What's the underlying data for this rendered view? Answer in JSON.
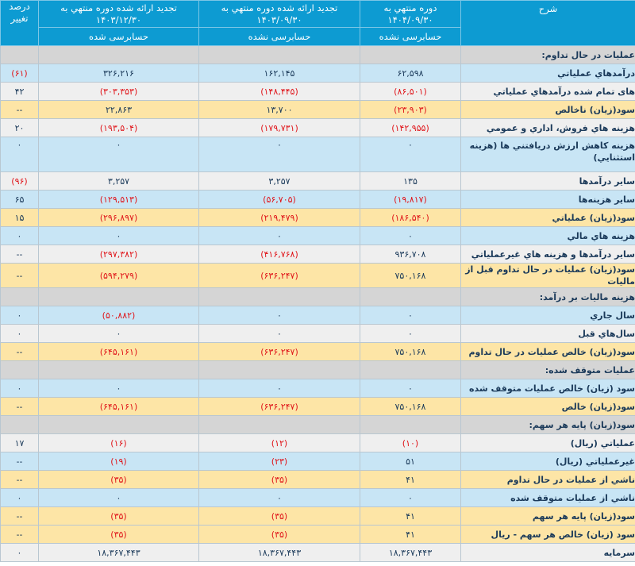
{
  "header": {
    "desc": "شرح",
    "col1": "دوره منتهي به ۱۴۰۴/۰۹/۳۰",
    "col2": "تجديد ارائه شده دوره منتهي به ۱۴۰۳/۰۹/۳۰",
    "col3": "تجديد ارائه شده دوره منتهي به ۱۴۰۳/۱۲/۳۰",
    "pct": "درصد تغيير",
    "col1_status": "حسابرسی نشده",
    "col2_status": "حسابرسی نشده",
    "col3_status": "حسابرسی شده"
  },
  "colors": {
    "header": "#0d9bd2",
    "negative": "#e0161b",
    "blue_row": "#c8e5f5",
    "yellow_row": "#fde5a6",
    "section_row": "#d5d5d5"
  },
  "rows": [
    {
      "type": "sec",
      "desc": "عمليات در حال تداوم:"
    },
    {
      "type": "blue",
      "desc": "درآمدهاي عملياتي",
      "c1": "۶۲,۵۹۸",
      "c2": "۱۶۲,۱۴۵",
      "c3": "۳۲۶,۲۱۶",
      "pct": "(۶۱)"
    },
    {
      "type": "gray",
      "desc": "هاى تمام شده درآمدهاي عملياتي",
      "c1": "(۸۶,۵۰۱)",
      "c2": "(۱۴۸,۴۴۵)",
      "c3": "(۳۰۳,۳۵۳)",
      "pct": "۴۲"
    },
    {
      "type": "yellow",
      "desc": "سود(زيان) ناخالص",
      "c1": "(۲۳,۹۰۳)",
      "c2": "۱۳,۷۰۰",
      "c3": "۲۲,۸۶۳",
      "pct": "--"
    },
    {
      "type": "gray",
      "desc": "هزينه هاي فروش، اداري و عمومي",
      "c1": "(۱۴۲,۹۵۵)",
      "c2": "(۱۷۹,۷۳۱)",
      "c3": "(۱۹۳,۵۰۴)",
      "pct": "۲۰"
    },
    {
      "type": "blue tall",
      "desc": "هزينه كاهش ارزش دريافتني ها (هزينه استثنايي)",
      "c1": "۰",
      "c2": "۰",
      "c3": "۰",
      "pct": "۰"
    },
    {
      "type": "gray",
      "desc": "ساير درآمدها",
      "c1": "۱۳۵",
      "c2": "۳,۲۵۷",
      "c3": "۳,۲۵۷",
      "pct": "(۹۶)"
    },
    {
      "type": "blue",
      "desc": "ساير هزينه‌ها",
      "c1": "(۱۹,۸۱۷)",
      "c2": "(۵۶,۷۰۵)",
      "c3": "(۱۲۹,۵۱۳)",
      "pct": "۶۵"
    },
    {
      "type": "yellow",
      "desc": "سود(زيان) عملياتي",
      "c1": "(۱۸۶,۵۴۰)",
      "c2": "(۲۱۹,۴۷۹)",
      "c3": "(۲۹۶,۸۹۷)",
      "pct": "۱۵"
    },
    {
      "type": "blue",
      "desc": "هزينه هاي مالي",
      "c1": "۰",
      "c2": "۰",
      "c3": "۰",
      "pct": "۰"
    },
    {
      "type": "gray",
      "desc": "ساير درآمدها و هزينه هاي غيرعملياتي",
      "c1": "۹۳۶,۷۰۸",
      "c2": "(۴۱۶,۷۶۸)",
      "c3": "(۲۹۷,۳۸۲)",
      "pct": "--"
    },
    {
      "type": "yellow",
      "desc": "سود(زيان) عمليات در حال تداوم قبل از ماليات",
      "c1": "۷۵۰,۱۶۸",
      "c2": "(۶۳۶,۲۴۷)",
      "c3": "(۵۹۴,۲۷۹)",
      "pct": "--"
    },
    {
      "type": "sec",
      "desc": "هزينه ماليات بر درآمد:"
    },
    {
      "type": "blue",
      "desc": "سال جاري",
      "c1": "۰",
      "c2": "۰",
      "c3": "(۵۰,۸۸۲)",
      "pct": "۰"
    },
    {
      "type": "gray",
      "desc": "سال‌هاي قبل",
      "c1": "۰",
      "c2": "۰",
      "c3": "۰",
      "pct": "۰"
    },
    {
      "type": "yellow",
      "desc": "سود(زيان) خالص عمليات در حال تداوم",
      "c1": "۷۵۰,۱۶۸",
      "c2": "(۶۳۶,۲۴۷)",
      "c3": "(۶۴۵,۱۶۱)",
      "pct": "--"
    },
    {
      "type": "sec",
      "desc": "عمليات متوقف شده:"
    },
    {
      "type": "blue",
      "desc": "سود (زيان) خالص عمليات متوقف شده",
      "c1": "۰",
      "c2": "۰",
      "c3": "۰",
      "pct": "۰"
    },
    {
      "type": "yellow",
      "desc": "سود(زيان) خالص",
      "c1": "۷۵۰,۱۶۸",
      "c2": "(۶۳۶,۲۴۷)",
      "c3": "(۶۴۵,۱۶۱)",
      "pct": "--"
    },
    {
      "type": "sec",
      "desc": "سود(زيان) پايه هر سهم:"
    },
    {
      "type": "gray",
      "desc": "عملياتي (ريال)",
      "c1": "(۱۰)",
      "c2": "(۱۲)",
      "c3": "(۱۶)",
      "pct": "۱۷"
    },
    {
      "type": "blue",
      "desc": "غيرعملياتي (ريال)",
      "c1": "۵۱",
      "c2": "(۲۳)",
      "c3": "(۱۹)",
      "pct": "--"
    },
    {
      "type": "yellow",
      "desc": "ناشي از عمليات در حال تداوم",
      "c1": "۴۱",
      "c2": "(۳۵)",
      "c3": "(۳۵)",
      "pct": "--"
    },
    {
      "type": "blue",
      "desc": "ناشي از عمليات متوقف شده",
      "c1": "۰",
      "c2": "۰",
      "c3": "۰",
      "pct": "۰"
    },
    {
      "type": "yellow",
      "desc": "سود(زيان) پايه هر سهم",
      "c1": "۴۱",
      "c2": "(۳۵)",
      "c3": "(۳۵)",
      "pct": "--"
    },
    {
      "type": "yellow",
      "desc": "سود (زيان) خالص هر سهم - ريال",
      "c1": "۴۱",
      "c2": "(۳۵)",
      "c3": "(۳۵)",
      "pct": "--"
    },
    {
      "type": "gray",
      "desc": "سرمايه",
      "c1": "۱۸,۳۶۷,۴۴۳",
      "c2": "۱۸,۳۶۷,۴۴۳",
      "c3": "۱۸,۳۶۷,۴۴۳",
      "pct": "۰"
    }
  ]
}
